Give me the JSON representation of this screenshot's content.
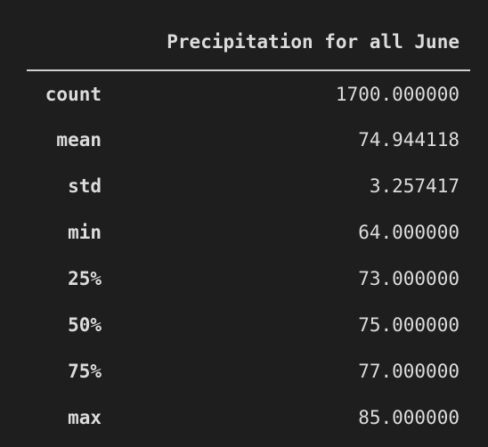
{
  "table": {
    "column_header": "Precipitation for all June",
    "rows": [
      {
        "label": "count",
        "value": "1700.000000"
      },
      {
        "label": "mean",
        "value": "74.944118"
      },
      {
        "label": "std",
        "value": "3.257417"
      },
      {
        "label": "min",
        "value": "64.000000"
      },
      {
        "label": "25%",
        "value": "73.000000"
      },
      {
        "label": "50%",
        "value": "75.000000"
      },
      {
        "label": "75%",
        "value": "77.000000"
      },
      {
        "label": "max",
        "value": "85.000000"
      }
    ]
  },
  "colors": {
    "background": "#1e1e1e",
    "text": "#dcdcdc",
    "rule": "#cfcfcf"
  }
}
